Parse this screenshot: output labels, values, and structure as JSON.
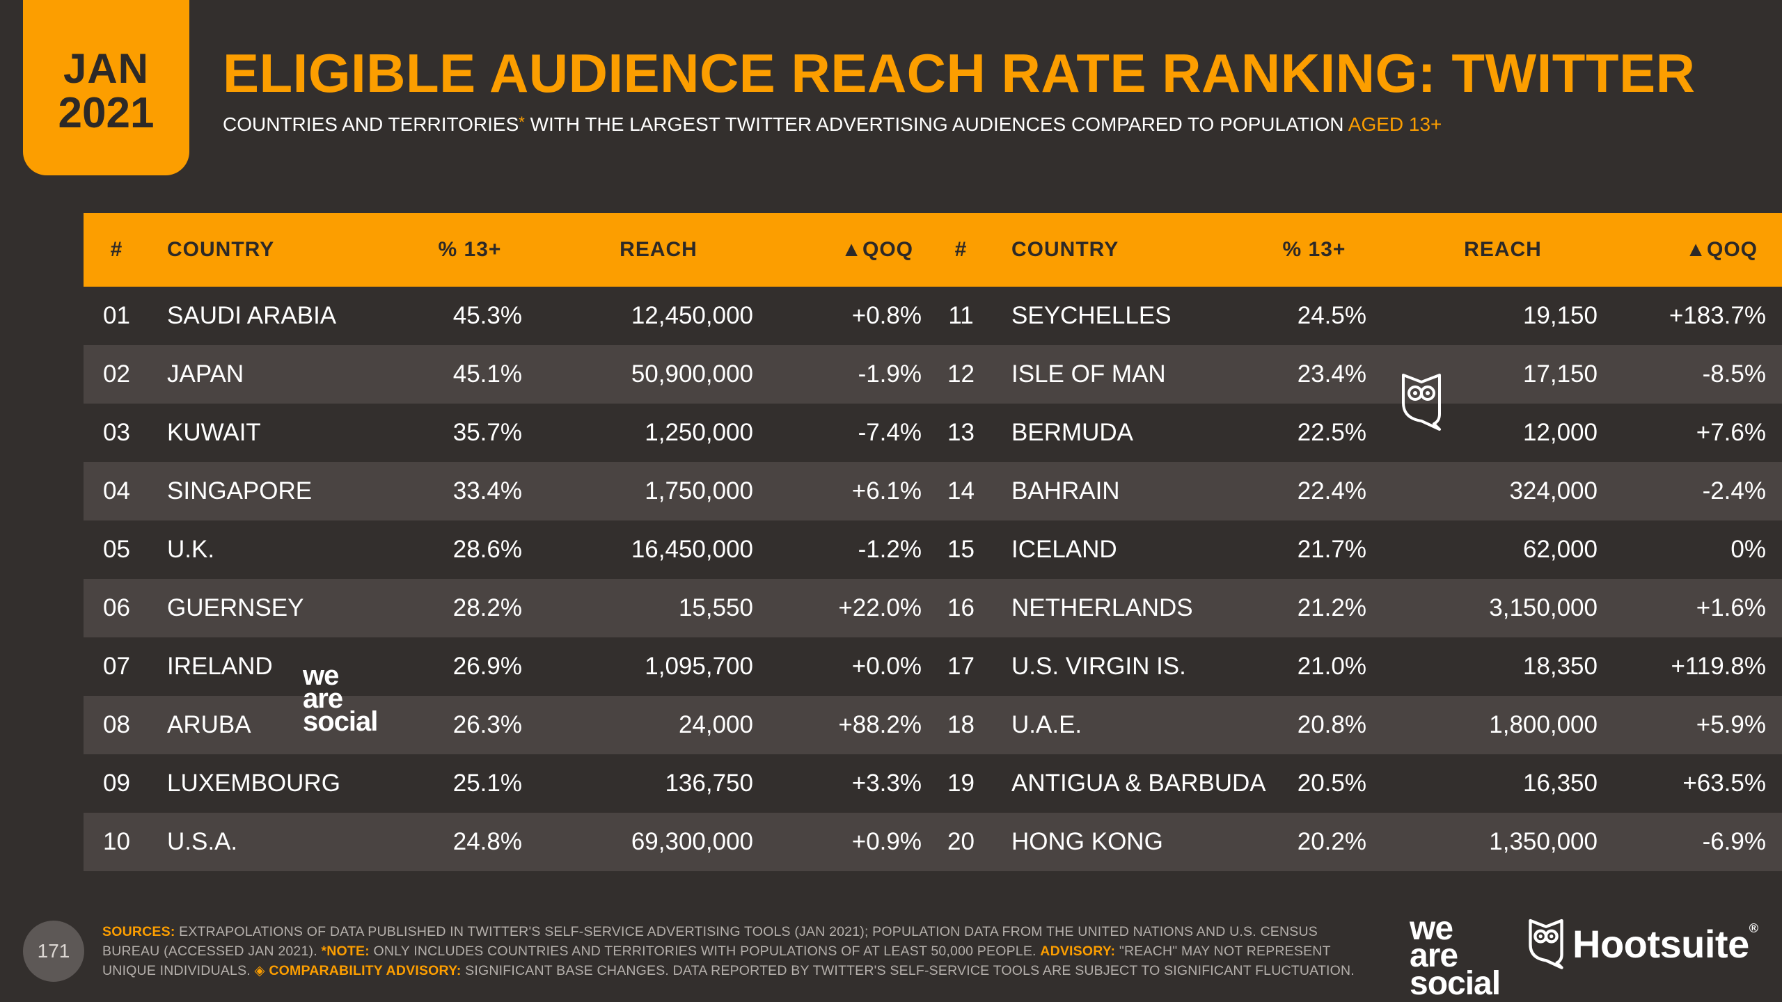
{
  "badge": {
    "month": "JAN",
    "year": "2021"
  },
  "title": "ELIGIBLE AUDIENCE REACH RATE RANKING: TWITTER",
  "subtitle": {
    "part1": "COUNTRIES AND TERRITORIES",
    "asterisk": "*",
    "part2": " WITH THE LARGEST TWITTER ADVERTISING AUDIENCES COMPARED TO POPULATION ",
    "highlight": "AGED 13+"
  },
  "table_headers": {
    "rank": "#",
    "country": "COUNTRY",
    "pct": "% 13+",
    "reach": "REACH",
    "qoq": "▲QOQ"
  },
  "left_rows": [
    {
      "rank": "01",
      "country": "SAUDI ARABIA",
      "pct": "45.3%",
      "reach": "12,450,000",
      "qoq": "+0.8%"
    },
    {
      "rank": "02",
      "country": "JAPAN",
      "pct": "45.1%",
      "reach": "50,900,000",
      "qoq": "-1.9%"
    },
    {
      "rank": "03",
      "country": "KUWAIT",
      "pct": "35.7%",
      "reach": "1,250,000",
      "qoq": "-7.4%"
    },
    {
      "rank": "04",
      "country": "SINGAPORE",
      "pct": "33.4%",
      "reach": "1,750,000",
      "qoq": "+6.1%"
    },
    {
      "rank": "05",
      "country": "U.K.",
      "pct": "28.6%",
      "reach": "16,450,000",
      "qoq": "-1.2%"
    },
    {
      "rank": "06",
      "country": "GUERNSEY",
      "pct": "28.2%",
      "reach": "15,550",
      "qoq": "+22.0%"
    },
    {
      "rank": "07",
      "country": "IRELAND",
      "pct": "26.9%",
      "reach": "1,095,700",
      "qoq": "+0.0%"
    },
    {
      "rank": "08",
      "country": "ARUBA",
      "pct": "26.3%",
      "reach": "24,000",
      "qoq": "+88.2%"
    },
    {
      "rank": "09",
      "country": "LUXEMBOURG",
      "pct": "25.1%",
      "reach": "136,750",
      "qoq": "+3.3%"
    },
    {
      "rank": "10",
      "country": "U.S.A.",
      "pct": "24.8%",
      "reach": "69,300,000",
      "qoq": "+0.9%"
    }
  ],
  "right_rows": [
    {
      "rank": "11",
      "country": "SEYCHELLES",
      "pct": "24.5%",
      "reach": "19,150",
      "qoq": "+183.7%"
    },
    {
      "rank": "12",
      "country": "ISLE OF MAN",
      "pct": "23.4%",
      "reach": "17,150",
      "qoq": "-8.5%"
    },
    {
      "rank": "13",
      "country": "BERMUDA",
      "pct": "22.5%",
      "reach": "12,000",
      "qoq": "+7.6%"
    },
    {
      "rank": "14",
      "country": "BAHRAIN",
      "pct": "22.4%",
      "reach": "324,000",
      "qoq": "-2.4%"
    },
    {
      "rank": "15",
      "country": "ICELAND",
      "pct": "21.7%",
      "reach": "62,000",
      "qoq": "0%"
    },
    {
      "rank": "16",
      "country": "NETHERLANDS",
      "pct": "21.2%",
      "reach": "3,150,000",
      "qoq": "+1.6%"
    },
    {
      "rank": "17",
      "country": "U.S. VIRGIN IS.",
      "pct": "21.0%",
      "reach": "18,350",
      "qoq": "+119.8%"
    },
    {
      "rank": "18",
      "country": "U.A.E.",
      "pct": "20.8%",
      "reach": "1,800,000",
      "qoq": "+5.9%"
    },
    {
      "rank": "19",
      "country": "ANTIGUA & BARBUDA",
      "pct": "20.5%",
      "reach": "16,350",
      "qoq": "+63.5%"
    },
    {
      "rank": "20",
      "country": "HONG KONG",
      "pct": "20.2%",
      "reach": "1,350,000",
      "qoq": "-6.9%"
    }
  ],
  "watermark": {
    "line1": "we",
    "line2": "are",
    "line3": "social"
  },
  "page_number": "171",
  "sources": {
    "k1": "SOURCES:",
    "t1": " EXTRAPOLATIONS OF DATA PUBLISHED IN TWITTER'S SELF-SERVICE ADVERTISING TOOLS (JAN 2021); POPULATION DATA FROM THE UNITED NATIONS AND U.S. CENSUS BUREAU (ACCESSED JAN 2021). ",
    "k2": "*NOTE:",
    "t2": " ONLY INCLUDES COUNTRIES AND TERRITORIES WITH POPULATIONS OF AT LEAST 50,000 PEOPLE. ",
    "k3": "ADVISORY:",
    "t3": " \"REACH\" MAY NOT REPRESENT UNIQUE INDIVIDUALS. ",
    "k4": "◈ COMPARABILITY ADVISORY:",
    "t4": " SIGNIFICANT BASE CHANGES. DATA REPORTED BY TWITTER'S SELF-SERVICE TOOLS ARE SUBJECT TO SIGNIFICANT FLUCTUATION."
  },
  "logos": {
    "was": {
      "line1": "we",
      "line2": "are",
      "line3": "social"
    },
    "hootsuite": {
      "name": "Hootsuite",
      "reg": "®"
    }
  },
  "colors": {
    "accent": "#fc9e00",
    "background": "#332f2d",
    "row_alt": "#4a4442"
  }
}
